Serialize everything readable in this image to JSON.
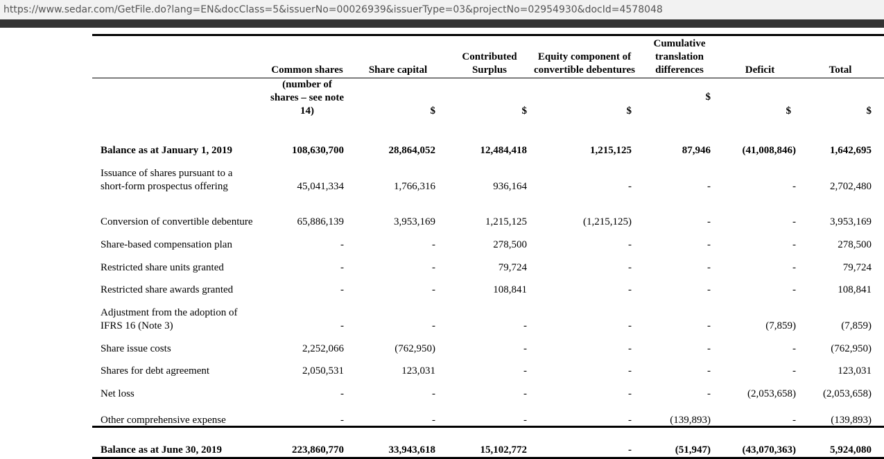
{
  "url": "https://www.sedar.com/GetFile.do?lang=EN&docClass=5&issuerNo=00026939&issuerType=03&projectNo=02954930&docId=4578048",
  "table": {
    "header": [
      "Common shares",
      "Share capital",
      "Contributed Surplus",
      "Equity component of convertible debentures",
      "Cumulative translation differences",
      "Deficit",
      "Total"
    ],
    "units": [
      "(number of shares – see note 14)",
      "$",
      "$",
      "$",
      "$",
      "$",
      "$"
    ],
    "rows": [
      [
        "Balance as at January 1, 2019",
        "108,630,700",
        "28,864,052",
        "12,484,418",
        "1,215,125",
        "87,946",
        "(41,008,846)",
        "1,642,695"
      ],
      [
        "Issuance of shares pursuant to a short-form prospectus offering",
        "45,041,334",
        "1,766,316",
        "936,164",
        "-",
        "-",
        "-",
        "2,702,480"
      ],
      [
        "Conversion of convertible debenture",
        "65,886,139",
        "3,953,169",
        "1,215,125",
        "(1,215,125)",
        "-",
        "-",
        "3,953,169"
      ],
      [
        "Share-based compensation plan",
        "-",
        "-",
        "278,500",
        "-",
        "-",
        "-",
        "278,500"
      ],
      [
        "Restricted share units granted",
        "-",
        "-",
        "79,724",
        "-",
        "-",
        "-",
        "79,724"
      ],
      [
        "Restricted share awards granted",
        "-",
        "-",
        "108,841",
        "-",
        "-",
        "-",
        "108,841"
      ],
      [
        "Adjustment from the adoption of IFRS 16 (Note 3)",
        "-",
        "-",
        "-",
        "-",
        "-",
        "(7,859)",
        "(7,859)"
      ],
      [
        "Share issue costs",
        "2,252,066",
        "(762,950)",
        "-",
        "-",
        "-",
        "-",
        "(762,950)"
      ],
      [
        "Shares for debt agreement",
        "2,050,531",
        "123,031",
        "-",
        "-",
        "-",
        "-",
        "123,031"
      ],
      [
        "Net loss",
        "-",
        "-",
        "-",
        "-",
        "-",
        "(2,053,658)",
        "(2,053,658)"
      ],
      [
        "Other comprehensive expense",
        "-",
        "-",
        "-",
        "-",
        "(139,893)",
        "-",
        "(139,893)"
      ],
      [
        "Balance as at June 30, 2019",
        "223,860,770",
        "33,943,618",
        "15,102,772",
        "-",
        "(51,947)",
        "(43,070,363)",
        "5,924,080"
      ]
    ]
  }
}
